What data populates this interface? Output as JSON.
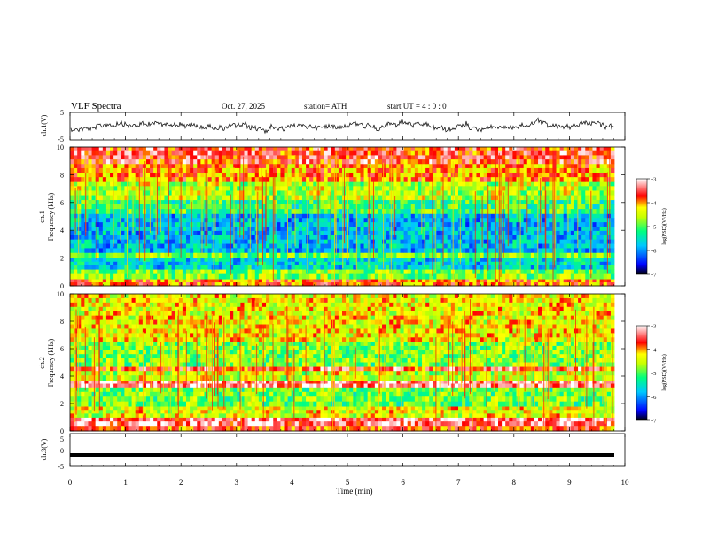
{
  "header": {
    "title": "VLF  Spectra",
    "date": "Oct. 27, 2025",
    "station": "station= ATH",
    "start_ut": "start  UT  =   4  : 0  : 0"
  },
  "chart_data": [
    {
      "type": "line",
      "name": "ch1-waveform",
      "ylabel": "ch.1(V)",
      "ylim": [
        -5,
        5
      ],
      "yticks": [
        "5",
        "-5"
      ],
      "xlim": [
        0,
        10
      ],
      "description_values": "noisy voltage trace around 0 V",
      "color": "#000000"
    },
    {
      "type": "heatmap",
      "name": "ch1-spectrogram",
      "ylabel": "Frequency  (kHz)",
      "channel_label": "ch.1",
      "ylim": [
        0,
        10
      ],
      "yticks": [
        "0",
        "2",
        "4",
        "6",
        "8",
        "10"
      ],
      "xlim": [
        0,
        9.8
      ],
      "colorbar": {
        "label": "log(PSD)(V²/Hz)",
        "range": [
          -7,
          -3
        ],
        "ticks": [
          "-3",
          "-4",
          "-5",
          "-6",
          "-7"
        ]
      },
      "bands_khz": [
        {
          "from": 0,
          "to": 0.5,
          "level": -3.9
        },
        {
          "from": 0.5,
          "to": 1.2,
          "level": -4.8
        },
        {
          "from": 1.2,
          "to": 2.0,
          "level": -5.6
        },
        {
          "from": 2.0,
          "to": 2.4,
          "level": -4.9
        },
        {
          "from": 2.4,
          "to": 5.2,
          "level": -5.8
        },
        {
          "from": 5.2,
          "to": 6.2,
          "level": -5.1
        },
        {
          "from": 6.2,
          "to": 7.5,
          "level": -4.6
        },
        {
          "from": 7.5,
          "to": 8.8,
          "level": -4.0
        },
        {
          "from": 8.8,
          "to": 10,
          "level": -3.6
        }
      ]
    },
    {
      "type": "heatmap",
      "name": "ch2-spectrogram",
      "ylabel": "Frequency  (kHz)",
      "channel_label": "ch.2",
      "ylim": [
        0,
        10
      ],
      "yticks": [
        "0",
        "2",
        "4",
        "6",
        "8",
        "10"
      ],
      "xlim": [
        0,
        9.8
      ],
      "colorbar": {
        "label": "log(PSD)(V²/Hz)",
        "range": [
          -7,
          -3
        ],
        "ticks": [
          "-3",
          "-4",
          "-5",
          "-6",
          "-7"
        ]
      },
      "bands_khz": [
        {
          "from": 0,
          "to": 0.4,
          "level": -3.8
        },
        {
          "from": 0.4,
          "to": 1.0,
          "level": -3.3
        },
        {
          "from": 1.0,
          "to": 1.8,
          "level": -4.4
        },
        {
          "from": 1.8,
          "to": 3.2,
          "level": -4.9
        },
        {
          "from": 3.2,
          "to": 3.7,
          "level": -3.3
        },
        {
          "from": 3.7,
          "to": 4.4,
          "level": -4.5
        },
        {
          "from": 4.4,
          "to": 4.7,
          "level": -3.6
        },
        {
          "from": 4.7,
          "to": 6.5,
          "level": -4.8
        },
        {
          "from": 6.5,
          "to": 10,
          "level": -4.3
        }
      ]
    },
    {
      "type": "line",
      "name": "ch3-waveform",
      "ylabel": "ch.3(V)",
      "ylim": [
        -5,
        5
      ],
      "yticks": [
        "5",
        "0",
        "-5"
      ],
      "xlim": [
        0,
        10
      ],
      "constant_value": -1.5,
      "color": "#000000"
    }
  ],
  "x_axis": {
    "label": "Time  (min)",
    "ticks": [
      "0",
      "1",
      "2",
      "3",
      "4",
      "5",
      "6",
      "7",
      "8",
      "9",
      "10"
    ],
    "range": [
      0,
      10
    ]
  },
  "colors": {
    "low": "#000000",
    "blue": "#0000ff",
    "cyan": "#00e0ff",
    "green": "#00ff60",
    "yellow": "#ffff00",
    "red": "#ff0000",
    "high": "#ffffff"
  }
}
